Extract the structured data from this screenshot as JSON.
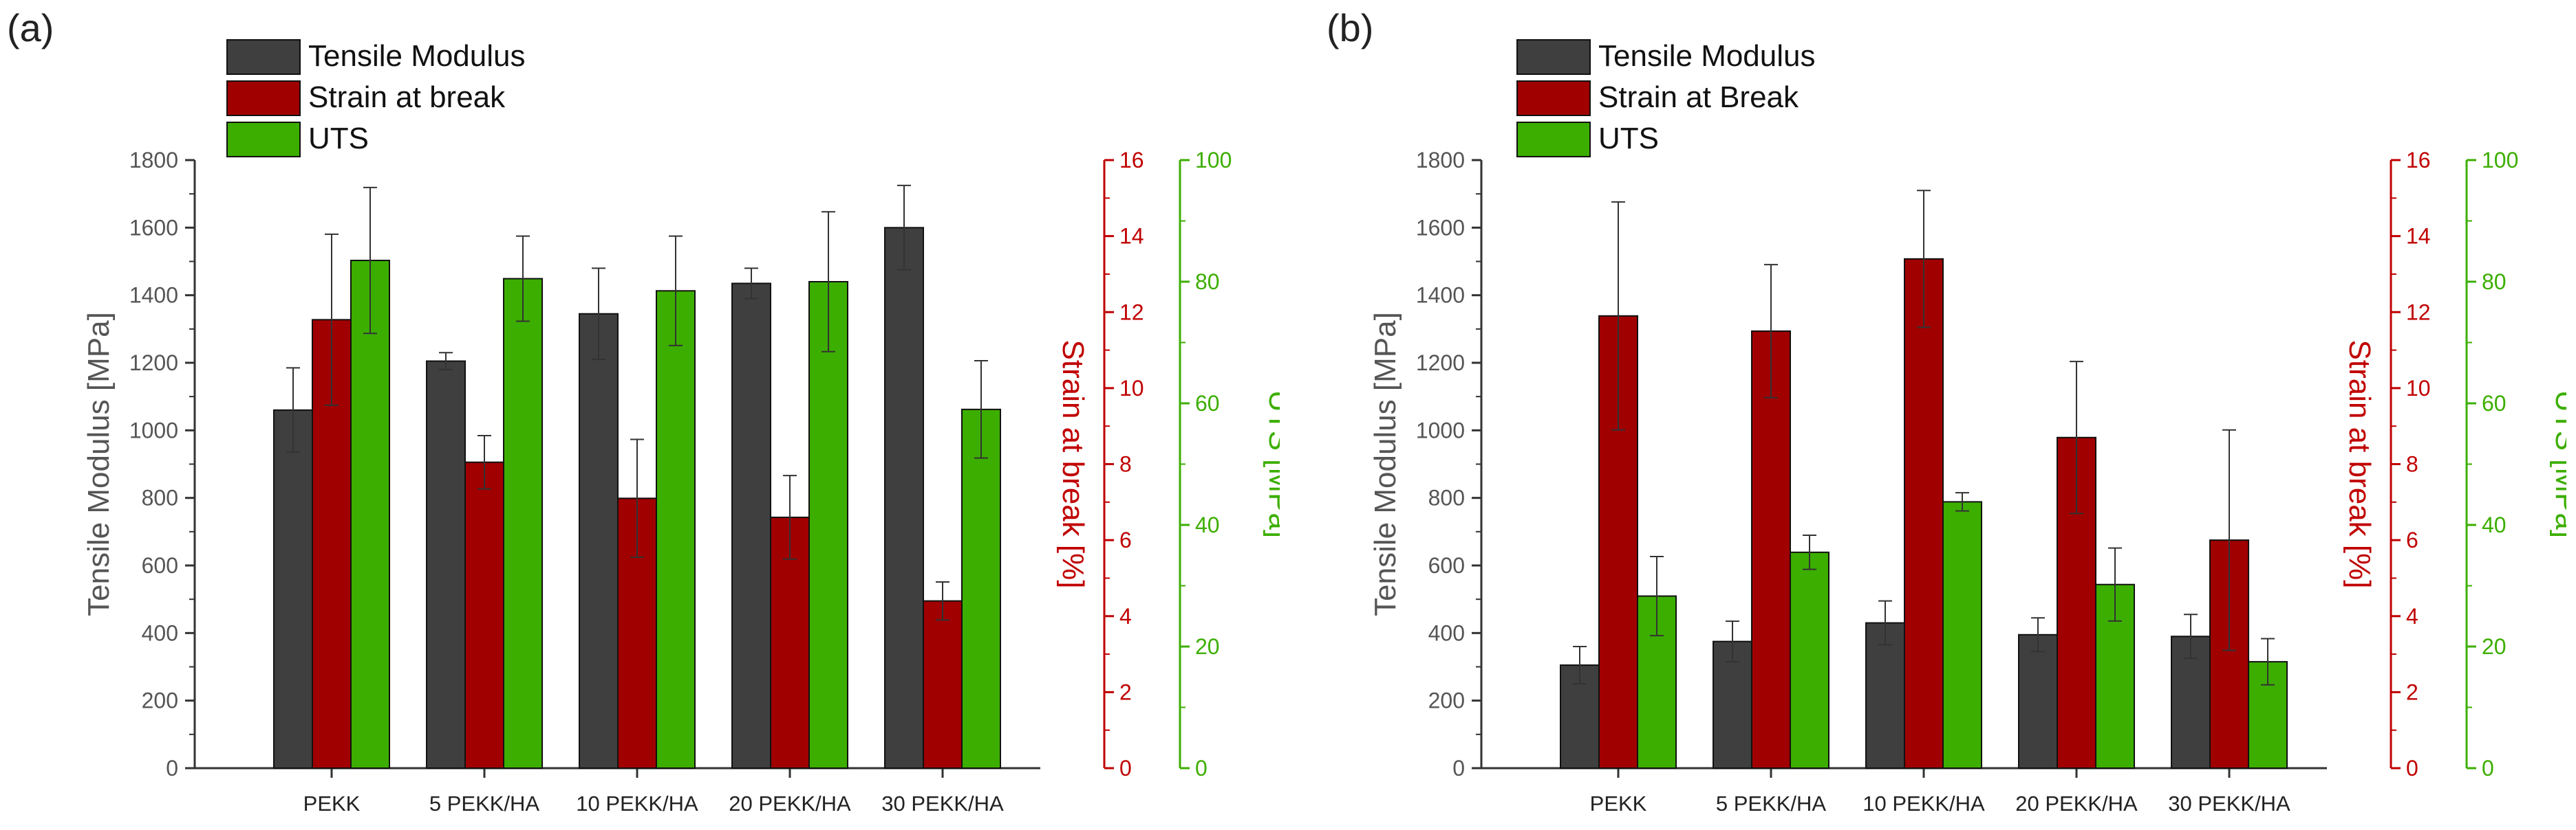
{
  "chart_data": [
    {
      "panel_label": "(a)",
      "type": "bar",
      "categories": [
        "PEKK",
        "5 PEKK/HA",
        "10 PEKK/HA",
        "20 PEKK/HA",
        "30 PEKK/HA"
      ],
      "series": [
        {
          "name": "Tensile Modulus",
          "color": "#3f3f3f",
          "axis": "left",
          "values": [
            1060,
            1205,
            1345,
            1435,
            1600
          ],
          "errors": [
            125,
            25,
            135,
            45,
            125
          ]
        },
        {
          "name": "Strain at break",
          "color": "#a00000",
          "axis": "right1",
          "values": [
            11.8,
            8.05,
            7.1,
            6.6,
            4.4
          ],
          "errors": [
            2.25,
            0.7,
            1.55,
            1.1,
            0.5
          ]
        },
        {
          "name": "UTS",
          "color": "#3cae00",
          "axis": "right2",
          "values": [
            83.5,
            80.5,
            78.5,
            80,
            59
          ],
          "errors": [
            12,
            7,
            9,
            11.5,
            8
          ]
        }
      ],
      "axes": {
        "left": {
          "label": "Tensile Modulus [MPa]",
          "range": [
            0,
            1800
          ],
          "ticks": [
            "0",
            "200",
            "400",
            "600",
            "800",
            "1000",
            "1200",
            "1400",
            "1600",
            "1800"
          ],
          "color": "#555555"
        },
        "right1": {
          "label": "Strain at break [%]",
          "range": [
            0,
            16
          ],
          "ticks": [
            "0",
            "2",
            "4",
            "6",
            "8",
            "10",
            "12",
            "14",
            "16"
          ],
          "color": "#c00000"
        },
        "right2": {
          "label": "UTS [MPa]",
          "range": [
            0,
            100
          ],
          "ticks": [
            "0",
            "20",
            "40",
            "60",
            "80",
            "100"
          ],
          "color": "#3cae00"
        }
      },
      "legend_position": "top-left",
      "grid": false
    },
    {
      "panel_label": "(b)",
      "type": "bar",
      "categories": [
        "PEKK",
        "5 PEKK/HA",
        "10 PEKK/HA",
        "20 PEKK/HA",
        "30 PEKK/HA"
      ],
      "series": [
        {
          "name": "Tensile Modulus",
          "color": "#3f3f3f",
          "axis": "left",
          "values": [
            305,
            375,
            430,
            395,
            390
          ],
          "errors": [
            55,
            60,
            65,
            50,
            65
          ]
        },
        {
          "name": "Strain at Break",
          "color": "#a00000",
          "axis": "right1",
          "values": [
            11.9,
            11.5,
            13.4,
            8.7,
            6.0
          ],
          "errors": [
            3.0,
            1.75,
            1.8,
            2.0,
            2.9
          ]
        },
        {
          "name": "UTS",
          "color": "#3cae00",
          "axis": "right2",
          "values": [
            28.3,
            35.5,
            43.8,
            30.2,
            17.5
          ],
          "errors": [
            6.5,
            2.8,
            1.5,
            6,
            3.8
          ]
        }
      ],
      "axes": {
        "left": {
          "label": "Tensile Modulus [MPa]",
          "range": [
            0,
            1800
          ],
          "ticks": [
            "0",
            "200",
            "400",
            "600",
            "800",
            "1000",
            "1200",
            "1400",
            "1600",
            "1800"
          ],
          "color": "#555555"
        },
        "right1": {
          "label": "Strain at break [%]",
          "range": [
            0,
            16
          ],
          "ticks": [
            "0",
            "2",
            "4",
            "6",
            "8",
            "10",
            "12",
            "14",
            "16"
          ],
          "color": "#c00000"
        },
        "right2": {
          "label": "UTS [MPa]",
          "range": [
            0,
            100
          ],
          "ticks": [
            "0",
            "20",
            "40",
            "60",
            "80",
            "100"
          ],
          "color": "#3cae00"
        }
      },
      "legend_position": "top-left",
      "grid": false
    }
  ]
}
